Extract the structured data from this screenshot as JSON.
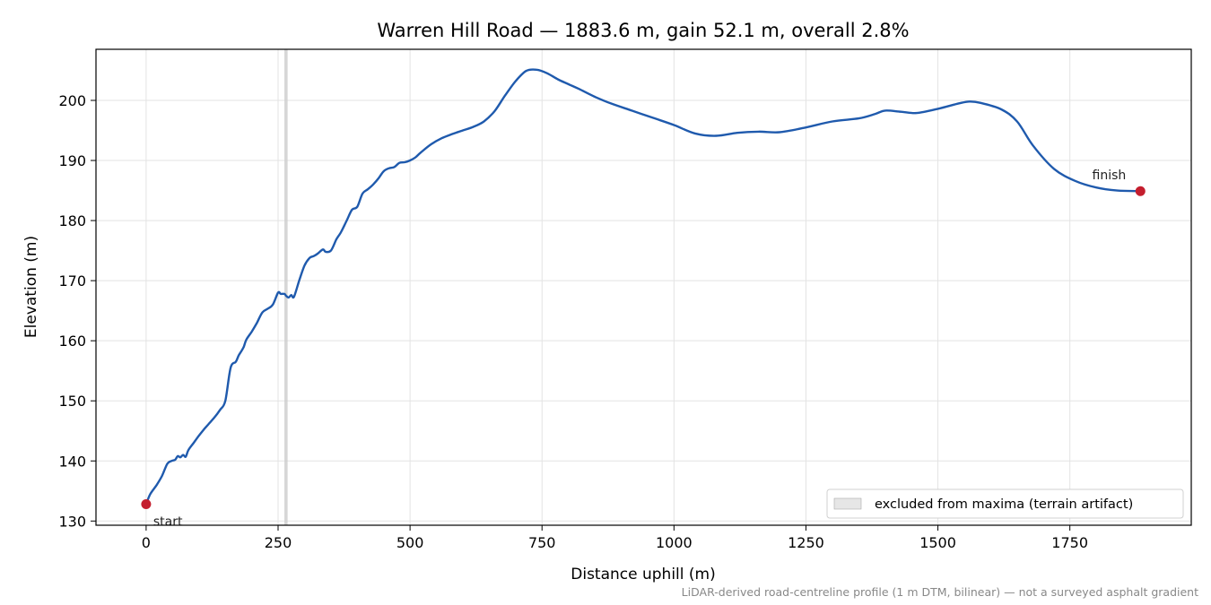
{
  "chart_data": {
    "type": "line",
    "title": "Warren Hill Road — 1883.6 m, gain 52.1 m, overall 2.8%",
    "xlabel": "Distance uphill (m)",
    "ylabel": "Elevation (m)",
    "xlim": [
      -95,
      1980
    ],
    "ylim": [
      129.3,
      208.5
    ],
    "xticks": [
      0,
      250,
      500,
      750,
      1000,
      1250,
      1500,
      1750
    ],
    "yticks": [
      130,
      140,
      150,
      160,
      170,
      180,
      190,
      200
    ],
    "grid": true,
    "legend": {
      "placement": "lower-right",
      "entries": [
        "excluded from maxima (terrain artifact)"
      ]
    },
    "excluded_region": {
      "x_start": 262,
      "x_end": 268,
      "color": "#cccccc"
    },
    "line_color": "#1f5aad",
    "marker_color": "#c41e2e",
    "series": [
      {
        "x": [
          0,
          8,
          20,
          30,
          40,
          48,
          55,
          60,
          65,
          70,
          75,
          80,
          90,
          100,
          110,
          120,
          130,
          140,
          150,
          160,
          170,
          175,
          180,
          185,
          190,
          200,
          210,
          220,
          230,
          240,
          250,
          255,
          262,
          265,
          270,
          275,
          280,
          290,
          300,
          310,
          318,
          325,
          335,
          340,
          350,
          360,
          365,
          370,
          380,
          390,
          400,
          410,
          420,
          430,
          440,
          450,
          460,
          470,
          480,
          490,
          500,
          510,
          520,
          540,
          560,
          580,
          600,
          620,
          640,
          660,
          680,
          700,
          720,
          740,
          760,
          780,
          800,
          820,
          850,
          880,
          920,
          960,
          1000,
          1040,
          1080,
          1120,
          1160,
          1200,
          1250,
          1300,
          1350,
          1380,
          1400,
          1430,
          1460,
          1500,
          1540,
          1560,
          1580,
          1620,
          1650,
          1680,
          1720,
          1760,
          1800,
          1840,
          1883.6
        ],
        "y": [
          132.8,
          134.5,
          136.0,
          137.5,
          139.5,
          140.0,
          140.2,
          140.8,
          140.6,
          141.0,
          140.7,
          141.8,
          143.0,
          144.2,
          145.3,
          146.3,
          147.3,
          148.5,
          150.0,
          155.5,
          156.5,
          157.5,
          158.2,
          159.0,
          160.2,
          161.5,
          163.0,
          164.7,
          165.3,
          166.0,
          168.0,
          167.8,
          167.8,
          167.5,
          167.2,
          167.6,
          167.3,
          170.0,
          172.5,
          173.8,
          174.1,
          174.5,
          175.2,
          174.8,
          175.0,
          176.8,
          177.5,
          178.2,
          180.0,
          181.8,
          182.3,
          184.5,
          185.2,
          186.0,
          187.0,
          188.2,
          188.7,
          188.9,
          189.6,
          189.7,
          190.0,
          190.5,
          191.3,
          192.7,
          193.7,
          194.4,
          195.0,
          195.6,
          196.5,
          198.2,
          200.8,
          203.2,
          204.9,
          205.1,
          204.5,
          203.5,
          202.7,
          201.9,
          200.6,
          199.5,
          198.3,
          197.1,
          195.9,
          194.5,
          194.1,
          194.6,
          194.8,
          194.7,
          195.5,
          196.5,
          197.0,
          197.7,
          198.3,
          198.1,
          197.9,
          198.6,
          199.5,
          199.8,
          199.6,
          198.5,
          196.5,
          192.5,
          188.6,
          186.6,
          185.5,
          185.0,
          184.9
        ]
      }
    ],
    "annotations": [
      {
        "text": "start",
        "x": 0,
        "y": 132.8
      },
      {
        "text": "finish",
        "x": 1883.6,
        "y": 184.9
      }
    ],
    "footnote": "LiDAR-derived road-centreline profile (1 m DTM, bilinear) — not a surveyed asphalt gradient"
  }
}
